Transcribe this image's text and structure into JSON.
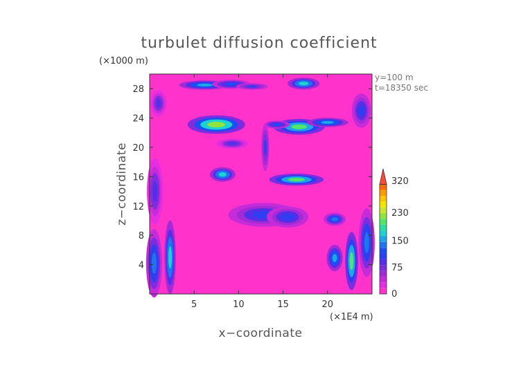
{
  "chart_data": {
    "type": "heatmap",
    "title": "turbulet diffusion coefficient",
    "xlabel": "x−coordinate",
    "ylabel": "z−coordinate",
    "x_unit": "(×1E4 m)",
    "y_unit": "(×1000 m)",
    "xlim": [
      0,
      25
    ],
    "ylim": [
      0,
      30
    ],
    "x_ticks": [
      5,
      10,
      15,
      20
    ],
    "y_ticks": [
      4,
      8,
      12,
      16,
      20,
      24,
      28
    ],
    "annotations": [
      "y=100 m",
      "t=18350 sec"
    ],
    "grid": false,
    "background_value": 0,
    "colorbar": {
      "levels": [
        0,
        15,
        30,
        45,
        60,
        75,
        90,
        105,
        120,
        135,
        150,
        165,
        180,
        195,
        210,
        230,
        250,
        270,
        290,
        320
      ],
      "tick_labels": [
        "0",
        "75",
        "150",
        "230",
        "320"
      ],
      "colors": [
        "#ff33cc",
        "#e62ee0",
        "#c52bd9",
        "#a22bd6",
        "#7d2ce0",
        "#552ee8",
        "#2d3ff0",
        "#1a4ff2",
        "#1d76f0",
        "#1da6e8",
        "#1ed2d2",
        "#29dfa0",
        "#50e66a",
        "#8ee63c",
        "#c8e632",
        "#f2e600",
        "#ffc400",
        "#ff9a00",
        "#ff6a00",
        "#ff4a38"
      ],
      "extend_max": true
    },
    "features": [
      {
        "x": 6.2,
        "z": 28.5,
        "rx": 1.6,
        "rz": 0.35,
        "v": 140
      },
      {
        "x": 9.2,
        "z": 28.6,
        "rx": 1.2,
        "rz": 0.35,
        "v": 110
      },
      {
        "x": 17.3,
        "z": 28.7,
        "rx": 1.0,
        "rz": 0.45,
        "v": 160
      },
      {
        "x": 11.5,
        "z": 28.3,
        "rx": 1.0,
        "rz": 0.25,
        "v": 90
      },
      {
        "x": 7.5,
        "z": 23.1,
        "rx": 1.8,
        "rz": 0.7,
        "v": 200
      },
      {
        "x": 16.8,
        "z": 22.8,
        "rx": 1.6,
        "rz": 0.6,
        "v": 180
      },
      {
        "x": 20.0,
        "z": 23.4,
        "rx": 1.3,
        "rz": 0.35,
        "v": 140
      },
      {
        "x": 14.3,
        "z": 23.1,
        "rx": 0.8,
        "rz": 0.3,
        "v": 110
      },
      {
        "x": 8.2,
        "z": 16.3,
        "rx": 0.8,
        "rz": 0.55,
        "v": 160
      },
      {
        "x": 16.5,
        "z": 15.6,
        "rx": 1.7,
        "rz": 0.45,
        "v": 180
      },
      {
        "x": 12.8,
        "z": 10.8,
        "rx": 2.2,
        "rz": 0.9,
        "v": 100
      },
      {
        "x": 15.5,
        "z": 10.5,
        "rx": 1.3,
        "rz": 0.8,
        "v": 100
      },
      {
        "x": 20.8,
        "z": 10.2,
        "rx": 0.7,
        "rz": 0.5,
        "v": 120
      },
      {
        "x": 2.3,
        "z": 5.0,
        "rx": 0.35,
        "rz": 2.8,
        "v": 160
      },
      {
        "x": 0.5,
        "z": 4.2,
        "rx": 0.5,
        "rz": 2.6,
        "v": 120
      },
      {
        "x": 22.7,
        "z": 4.5,
        "rx": 0.4,
        "rz": 2.2,
        "v": 180
      },
      {
        "x": 20.8,
        "z": 4.9,
        "rx": 0.5,
        "rz": 1.0,
        "v": 140
      },
      {
        "x": 24.4,
        "z": 7.0,
        "rx": 0.5,
        "rz": 2.6,
        "v": 120
      },
      {
        "x": 0.6,
        "z": 14.0,
        "rx": 0.5,
        "rz": 2.5,
        "v": 75
      },
      {
        "x": 13.0,
        "z": 20.0,
        "rx": 0.25,
        "rz": 1.8,
        "v": 90
      },
      {
        "x": 1.0,
        "z": 26.0,
        "rx": 0.5,
        "rz": 1.0,
        "v": 75
      },
      {
        "x": 23.8,
        "z": 25.0,
        "rx": 0.6,
        "rz": 1.3,
        "v": 100
      },
      {
        "x": 9.3,
        "z": 20.5,
        "rx": 1.0,
        "rz": 0.4,
        "v": 75
      }
    ]
  }
}
